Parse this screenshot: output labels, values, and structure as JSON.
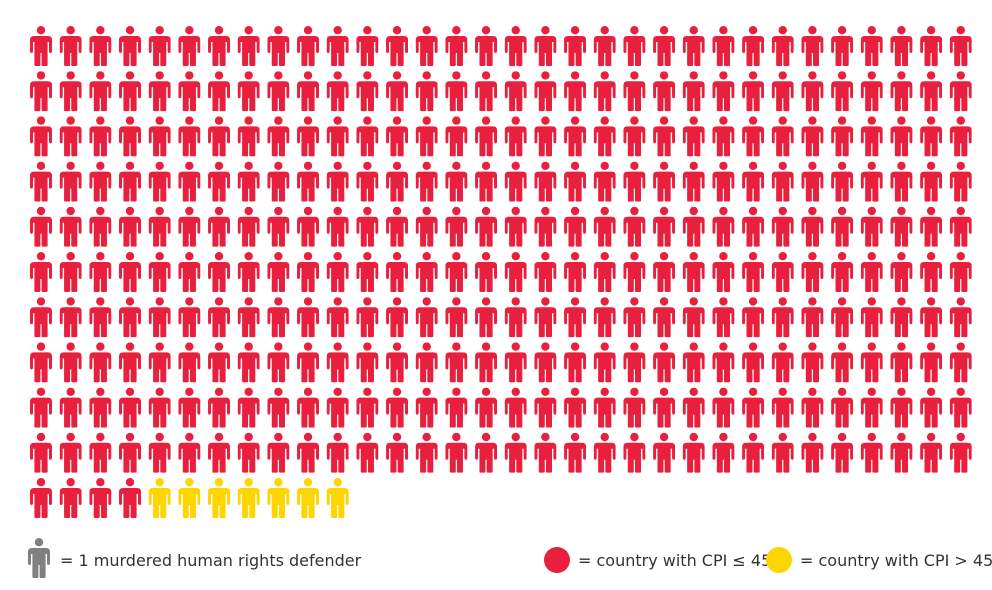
{
  "chart_data": {
    "type": "icon-array",
    "unit_label": "= 1 murdered human rights defender",
    "columns": 32,
    "categories": [
      {
        "label": "= country with CPI ≤ 45",
        "count": 324,
        "color": "#e8203e"
      },
      {
        "label": "= country with CPI > 45",
        "count": 7,
        "color": "#ffd500"
      }
    ],
    "total": 331
  },
  "colors": {
    "unit_icon": "#808080"
  }
}
